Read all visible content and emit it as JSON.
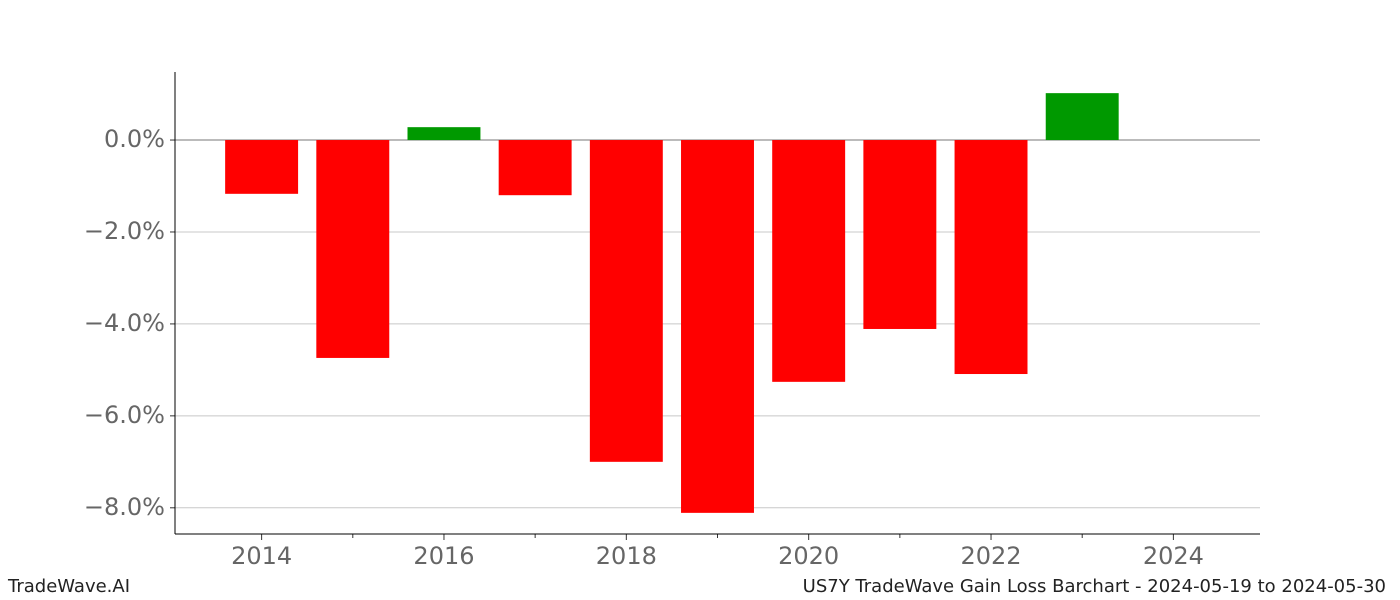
{
  "chart_data": {
    "type": "bar",
    "title": "US7Y TradeWave Gain Loss Barchart - 2024-05-19 to 2024-05-30",
    "brand": "TradeWave.AI",
    "x": [
      2014,
      2015,
      2016,
      2017,
      2018,
      2019,
      2020,
      2021,
      2022,
      2023
    ],
    "values": [
      -1.17,
      -4.74,
      0.28,
      -1.2,
      -7.0,
      -8.11,
      -5.26,
      -4.11,
      -5.09,
      1.02
    ],
    "colors": [
      "#ff0000",
      "#ff0000",
      "#009900",
      "#ff0000",
      "#ff0000",
      "#ff0000",
      "#ff0000",
      "#ff0000",
      "#ff0000",
      "#009900"
    ],
    "xlim": [
      2013.05,
      2024.95
    ],
    "xticks": [
      2014,
      2016,
      2018,
      2020,
      2022,
      2024
    ],
    "xticks_minor": [
      2015,
      2017,
      2019,
      2021,
      2023
    ],
    "ylim": [
      -8.57,
      1.48
    ],
    "yticks": [
      {
        "value": 0,
        "label": "0.0%"
      },
      {
        "value": -2,
        "label": "−2.0%"
      },
      {
        "value": -4,
        "label": "−4.0%"
      },
      {
        "value": -6,
        "label": "−6.0%"
      },
      {
        "value": -8,
        "label": "−8.0%"
      }
    ],
    "grid": true
  }
}
